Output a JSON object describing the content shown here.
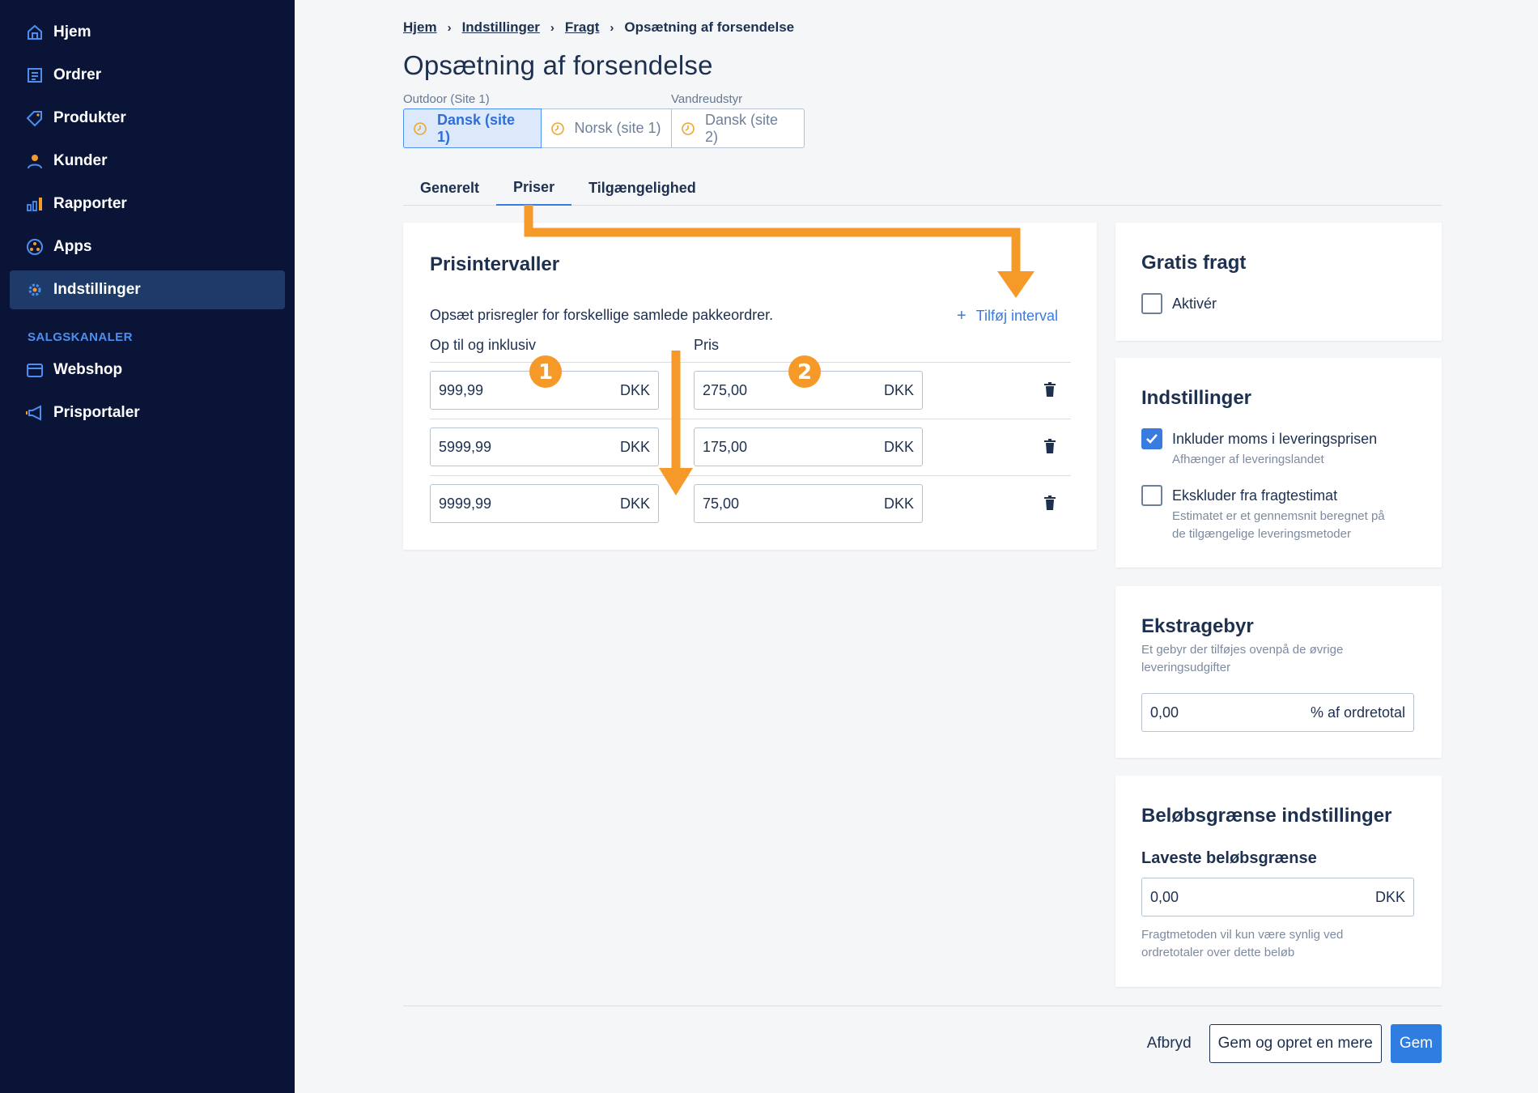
{
  "sidebar": {
    "items": [
      {
        "label": "Hjem",
        "icon": "home-icon"
      },
      {
        "label": "Ordrer",
        "icon": "orders-icon"
      },
      {
        "label": "Produkter",
        "icon": "tag-icon"
      },
      {
        "label": "Kunder",
        "icon": "person-icon"
      },
      {
        "label": "Rapporter",
        "icon": "bar-chart-icon"
      },
      {
        "label": "Apps",
        "icon": "apps-icon"
      },
      {
        "label": "Indstillinger",
        "icon": "gear-icon",
        "active": true
      }
    ],
    "section_title": "SALGSKANALER",
    "channels": [
      {
        "label": "Webshop",
        "icon": "shop-icon"
      },
      {
        "label": "Prisportaler",
        "icon": "megaphone-icon"
      }
    ]
  },
  "breadcrumb": [
    "Hjem",
    "Indstillinger",
    "Fragt",
    "Opsætning af forsendelse"
  ],
  "page_title": "Opsætning af forsendelse",
  "sites": [
    {
      "name": "Outdoor (Site 1)"
    },
    {
      "name": "Vandreudstyr"
    }
  ],
  "locales": [
    {
      "label": "Dansk (site 1)",
      "active": true
    },
    {
      "label": "Norsk (site 1)",
      "active": false
    },
    {
      "label": "Dansk (site 2)",
      "active": false
    }
  ],
  "tabs": [
    {
      "label": "Generelt",
      "active": false
    },
    {
      "label": "Priser",
      "active": true
    },
    {
      "label": "Tilgængelighed",
      "active": false
    }
  ],
  "intervals": {
    "title": "Prisintervaller",
    "description": "Opsæt prisregler for forskellige samlede pakkeordrer.",
    "add_label": "Tilføj interval",
    "col_up_to": "Op til og inklusiv",
    "col_price": "Pris",
    "currency": "DKK",
    "rows": [
      {
        "up_to": "999,99",
        "price": "275,00"
      },
      {
        "up_to": "5999,99",
        "price": "175,00"
      },
      {
        "up_to": "9999,99",
        "price": "75,00"
      }
    ]
  },
  "free_shipping": {
    "title": "Gratis fragt",
    "enable_label": "Aktivér",
    "enabled": false
  },
  "settings": {
    "title": "Indstillinger",
    "include_vat_label": "Inkluder moms i leveringsprisen",
    "include_vat_help": "Afhænger af leveringslandet",
    "include_vat_checked": true,
    "exclude_estimate_label": "Ekskluder fra fragtestimat",
    "exclude_estimate_help_1": "Estimatet er et gennemsnit beregnet på",
    "exclude_estimate_help_2": "de tilgængelige leveringsmetoder",
    "exclude_estimate_checked": false
  },
  "extra_fee": {
    "title": "Ekstragebyr",
    "help_1": "Et gebyr der tilføjes ovenpå de øvrige",
    "help_2": "leveringsudgifter",
    "value": "0,00",
    "unit": "% af ordretotal"
  },
  "amount_limits": {
    "title": "Beløbsgrænse indstillinger",
    "lowest_label": "Laveste beløbsgrænse",
    "value": "0,00",
    "unit": "DKK",
    "help_1": "Fragtmetoden vil kun være synlig ved",
    "help_2": "ordretotaler over dette beløb"
  },
  "footer": {
    "cancel": "Afbryd",
    "save_and_new": "Gem og opret en mere",
    "save": "Gem"
  },
  "annotations": {
    "badge_1": "1",
    "badge_2": "2",
    "color": "#f59a28"
  },
  "colors": {
    "sidebar_bg": "#0a1437",
    "sidebar_active": "#1e3a68",
    "accent": "#2f7de1",
    "annotation": "#f59a28"
  }
}
